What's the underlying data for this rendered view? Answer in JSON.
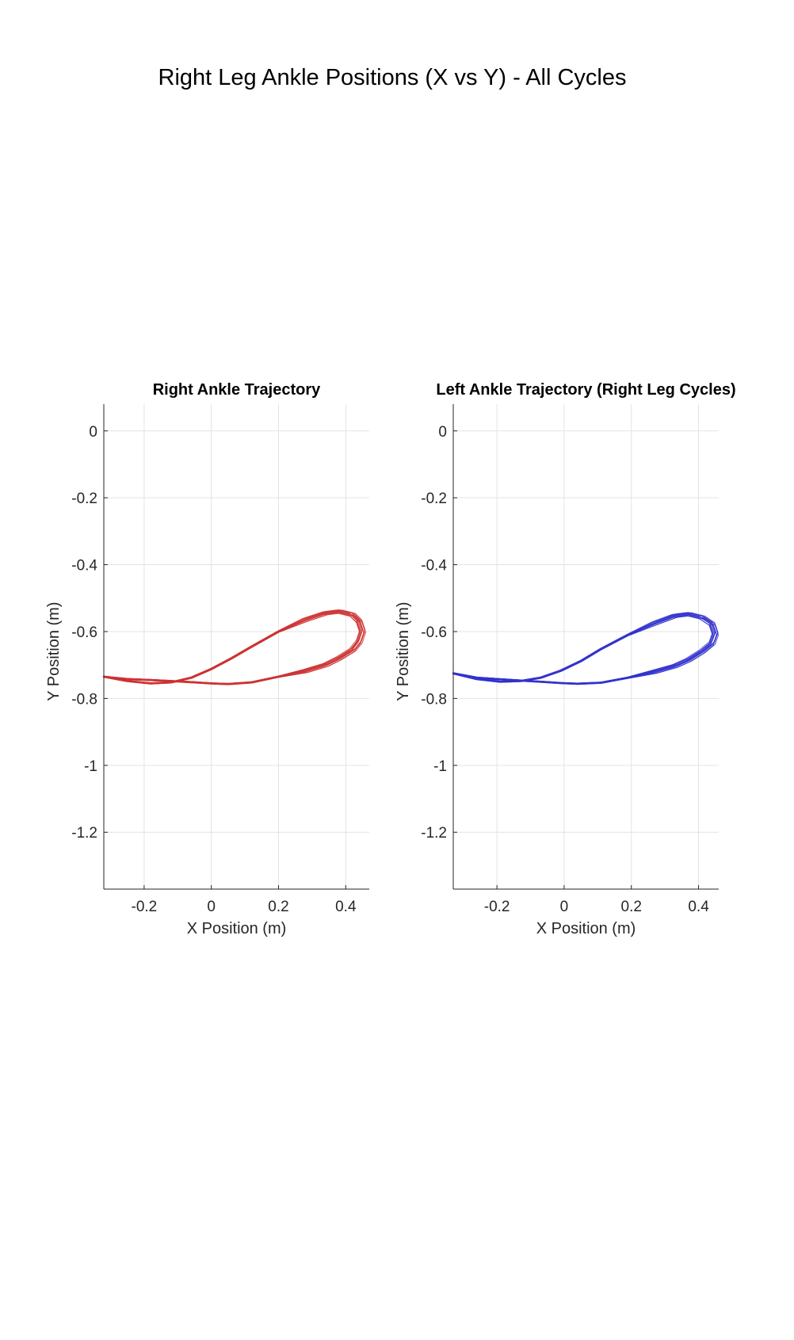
{
  "figure": {
    "title": "Right Leg Ankle Positions (X vs Y) - All Cycles"
  },
  "chart_data": [
    {
      "type": "line",
      "title": "Right Ankle Trajectory",
      "xlabel": "X Position (m)",
      "ylabel": "Y Position (m)",
      "xlim": [
        -0.32,
        0.47
      ],
      "ylim": [
        -1.37,
        0.08
      ],
      "xticks": [
        -0.2,
        0,
        0.2,
        0.4
      ],
      "xtick_labels": [
        "-0.2",
        "0",
        "0.2",
        "0.4"
      ],
      "yticks": [
        0,
        -0.2,
        -0.4,
        -0.6,
        -0.8,
        -1,
        -1.2
      ],
      "ytick_labels": [
        "0",
        "-0.2",
        "-0.4",
        "-0.6",
        "-0.8",
        "-1",
        "-1.2"
      ],
      "grid": true,
      "color": "#cc3333",
      "cycle_count": 12,
      "series": [
        {
          "x": [
            -0.32,
            -0.25,
            -0.18,
            -0.12,
            -0.05,
            0.0,
            0.05,
            0.12,
            0.2,
            0.28,
            0.34,
            0.38,
            0.42,
            0.44,
            0.45,
            0.44,
            0.42,
            0.38,
            0.34,
            0.28,
            0.2,
            0.12,
            0.06,
            0.0,
            -0.06,
            -0.12,
            -0.18,
            -0.25,
            -0.32
          ],
          "y": [
            -0.735,
            -0.742,
            -0.745,
            -0.748,
            -0.752,
            -0.755,
            -0.757,
            -0.752,
            -0.735,
            -0.718,
            -0.7,
            -0.68,
            -0.655,
            -0.63,
            -0.6,
            -0.57,
            -0.55,
            -0.54,
            -0.545,
            -0.565,
            -0.6,
            -0.645,
            -0.68,
            -0.712,
            -0.738,
            -0.752,
            -0.755,
            -0.748,
            -0.735
          ]
        }
      ]
    },
    {
      "type": "line",
      "title": "Left Ankle Trajectory (Right Leg Cycles)",
      "xlabel": "X Position (m)",
      "ylabel": "Y Position (m)",
      "xlim": [
        -0.33,
        0.46
      ],
      "ylim": [
        -1.37,
        0.08
      ],
      "xticks": [
        -0.2,
        0,
        0.2,
        0.4
      ],
      "xtick_labels": [
        "-0.2",
        "0",
        "0.2",
        "0.4"
      ],
      "yticks": [
        0,
        -0.2,
        -0.4,
        -0.6,
        -0.8,
        -1,
        -1.2
      ],
      "ytick_labels": [
        "0",
        "-0.2",
        "-0.4",
        "-0.6",
        "-0.8",
        "-1",
        "-1.2"
      ],
      "grid": true,
      "color": "#3333cc",
      "cycle_count": 12,
      "series": [
        {
          "x": [
            -0.33,
            -0.26,
            -0.2,
            -0.14,
            -0.07,
            -0.01,
            0.04,
            0.11,
            0.19,
            0.27,
            0.33,
            0.37,
            0.41,
            0.44,
            0.45,
            0.44,
            0.41,
            0.37,
            0.33,
            0.27,
            0.19,
            0.11,
            0.05,
            -0.01,
            -0.07,
            -0.13,
            -0.19,
            -0.26,
            -0.33
          ],
          "y": [
            -0.725,
            -0.738,
            -0.742,
            -0.746,
            -0.75,
            -0.754,
            -0.756,
            -0.753,
            -0.738,
            -0.72,
            -0.703,
            -0.685,
            -0.66,
            -0.635,
            -0.607,
            -0.578,
            -0.558,
            -0.548,
            -0.553,
            -0.575,
            -0.61,
            -0.652,
            -0.688,
            -0.717,
            -0.738,
            -0.748,
            -0.75,
            -0.742,
            -0.725
          ]
        }
      ]
    }
  ]
}
